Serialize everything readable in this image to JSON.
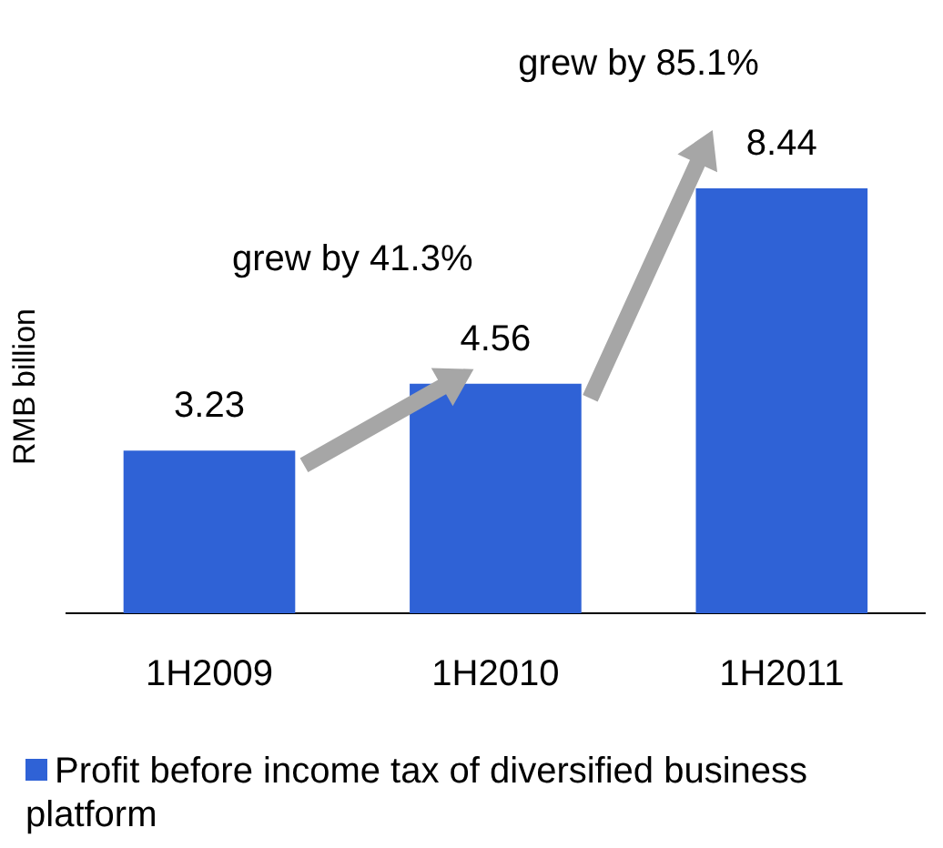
{
  "chart_data": {
    "type": "bar",
    "ylabel": "RMB billion",
    "categories": [
      "1H2009",
      "1H2010",
      "1H2011"
    ],
    "series": [
      {
        "name": "Profit before income tax of diversified business platform",
        "color": "#2f62d6",
        "values": [
          3.23,
          4.56,
          8.44
        ]
      }
    ],
    "data_labels": true,
    "legend": "bottom",
    "grid": false,
    "annotations": [
      "grew by 41.3%",
      "grew by 85.1%"
    ]
  }
}
